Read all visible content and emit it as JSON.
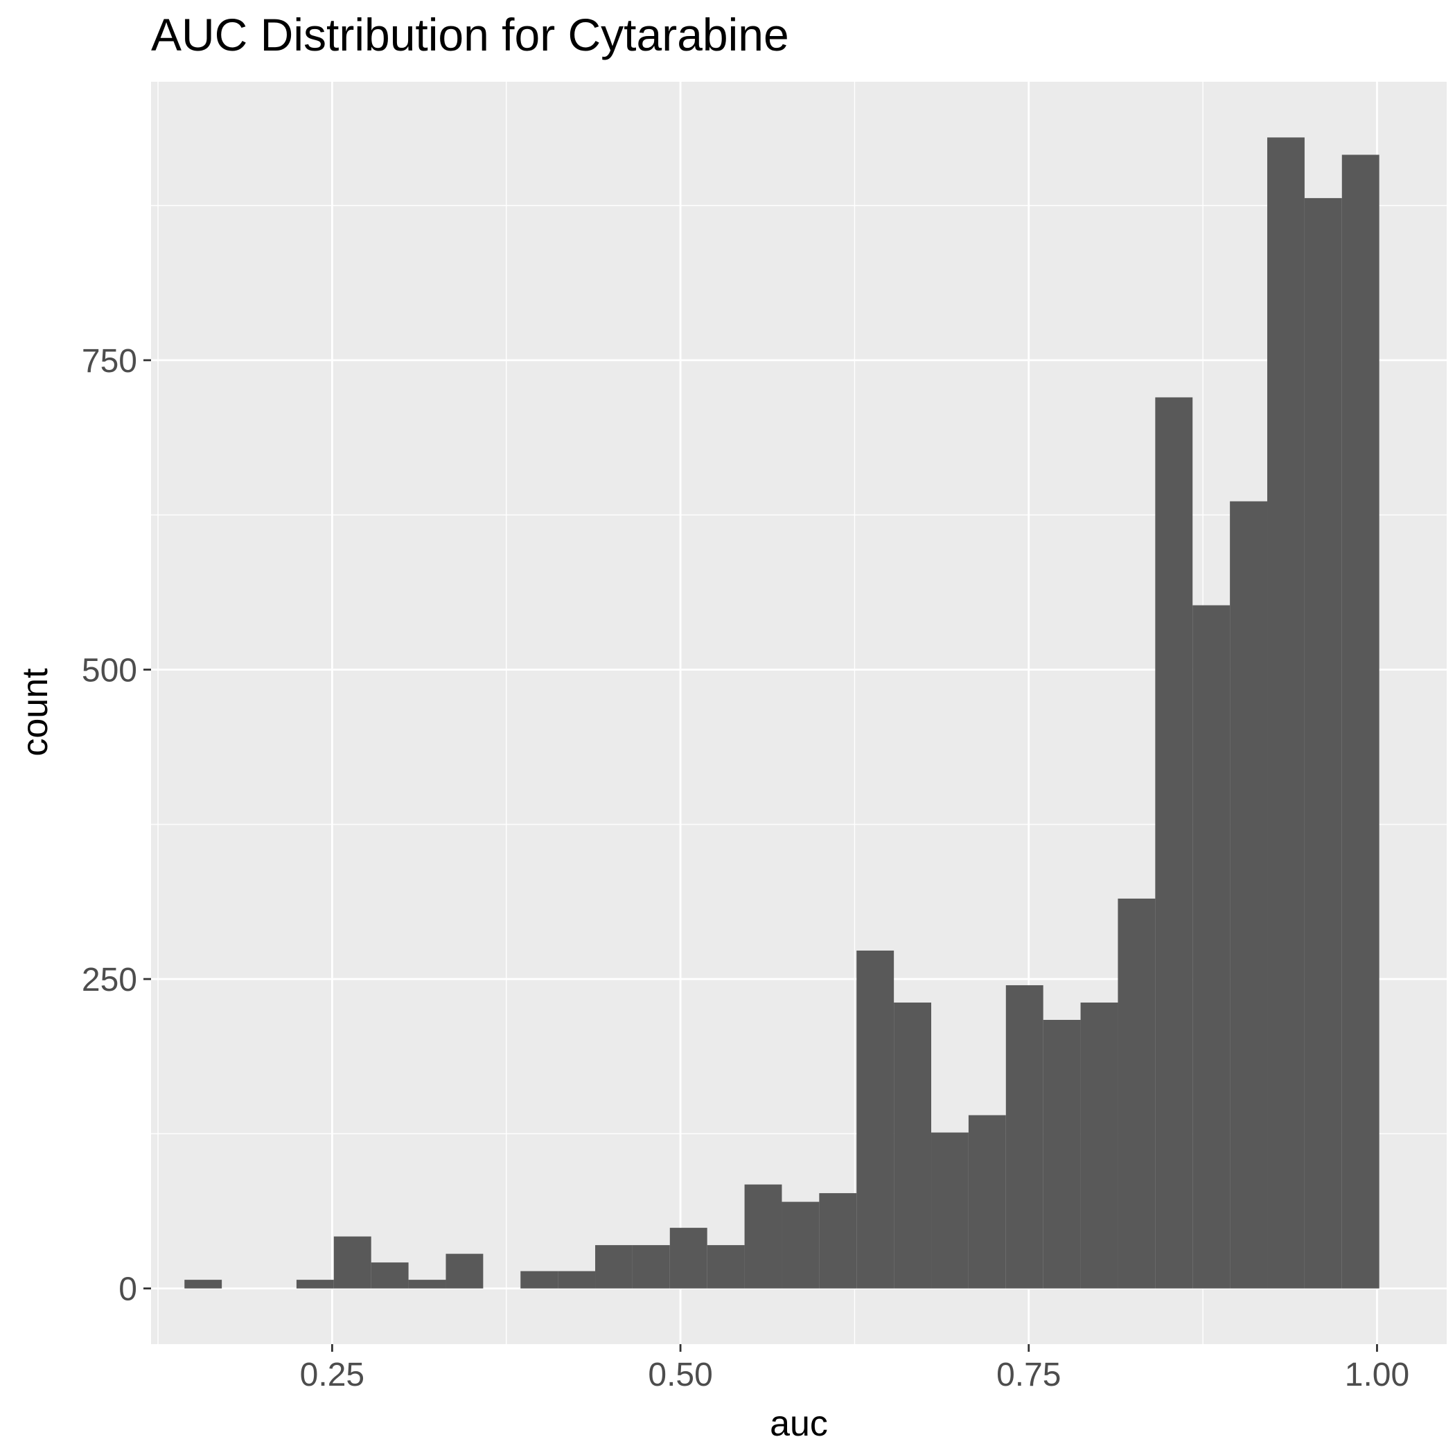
{
  "chart_data": {
    "type": "histogram",
    "title": "AUC Distribution for Cytarabine",
    "xlabel": "auc",
    "ylabel": "count",
    "xlim": [
      0.12,
      1.05
    ],
    "ylim": [
      -45,
      975
    ],
    "x_ticks": [
      {
        "value": 0.25,
        "label": "0.25"
      },
      {
        "value": 0.5,
        "label": "0.50"
      },
      {
        "value": 0.75,
        "label": "0.75"
      },
      {
        "value": 1.0,
        "label": "1.00"
      }
    ],
    "y_ticks": [
      {
        "value": 0,
        "label": "0"
      },
      {
        "value": 250,
        "label": "250"
      },
      {
        "value": 500,
        "label": "500"
      },
      {
        "value": 750,
        "label": "750"
      }
    ],
    "x_minor_ticks": [
      0.125,
      0.375,
      0.625,
      0.875
    ],
    "y_minor_ticks": [
      125,
      375,
      625,
      875
    ],
    "grid": true,
    "colors": {
      "bar": "#595959",
      "panel": "#ebebeb",
      "grid": "#ffffff"
    },
    "bin_width": 0.0268,
    "bins": [
      {
        "x0": 0.144,
        "x1": 0.1708,
        "count": 7
      },
      {
        "x0": 0.1708,
        "x1": 0.1976,
        "count": 0
      },
      {
        "x0": 0.1976,
        "x1": 0.2244,
        "count": 0
      },
      {
        "x0": 0.2244,
        "x1": 0.2512,
        "count": 7
      },
      {
        "x0": 0.2512,
        "x1": 0.278,
        "count": 42
      },
      {
        "x0": 0.278,
        "x1": 0.3048,
        "count": 21
      },
      {
        "x0": 0.3048,
        "x1": 0.3316,
        "count": 7
      },
      {
        "x0": 0.3316,
        "x1": 0.3584,
        "count": 28
      },
      {
        "x0": 0.3584,
        "x1": 0.3852,
        "count": 0
      },
      {
        "x0": 0.3852,
        "x1": 0.412,
        "count": 14
      },
      {
        "x0": 0.412,
        "x1": 0.4388,
        "count": 14
      },
      {
        "x0": 0.4388,
        "x1": 0.4656,
        "count": 35
      },
      {
        "x0": 0.4656,
        "x1": 0.4924,
        "count": 35
      },
      {
        "x0": 0.4924,
        "x1": 0.5192,
        "count": 49
      },
      {
        "x0": 0.5192,
        "x1": 0.546,
        "count": 35
      },
      {
        "x0": 0.546,
        "x1": 0.5728,
        "count": 84
      },
      {
        "x0": 0.5728,
        "x1": 0.5996,
        "count": 70
      },
      {
        "x0": 0.5996,
        "x1": 0.6264,
        "count": 77
      },
      {
        "x0": 0.6264,
        "x1": 0.6532,
        "count": 273
      },
      {
        "x0": 0.6532,
        "x1": 0.68,
        "count": 231
      },
      {
        "x0": 0.68,
        "x1": 0.7068,
        "count": 126
      },
      {
        "x0": 0.7068,
        "x1": 0.7336,
        "count": 140
      },
      {
        "x0": 0.7336,
        "x1": 0.7604,
        "count": 245
      },
      {
        "x0": 0.7604,
        "x1": 0.7872,
        "count": 217
      },
      {
        "x0": 0.7872,
        "x1": 0.814,
        "count": 231
      },
      {
        "x0": 0.814,
        "x1": 0.8408,
        "count": 315
      },
      {
        "x0": 0.8408,
        "x1": 0.8676,
        "count": 720
      },
      {
        "x0": 0.8676,
        "x1": 0.8944,
        "count": 552
      },
      {
        "x0": 0.8944,
        "x1": 0.9212,
        "count": 636
      },
      {
        "x0": 0.9212,
        "x1": 0.948,
        "count": 930
      },
      {
        "x0": 0.948,
        "x1": 0.9748,
        "count": 881
      },
      {
        "x0": 0.9748,
        "x1": 1.0016,
        "count": 916
      }
    ]
  }
}
